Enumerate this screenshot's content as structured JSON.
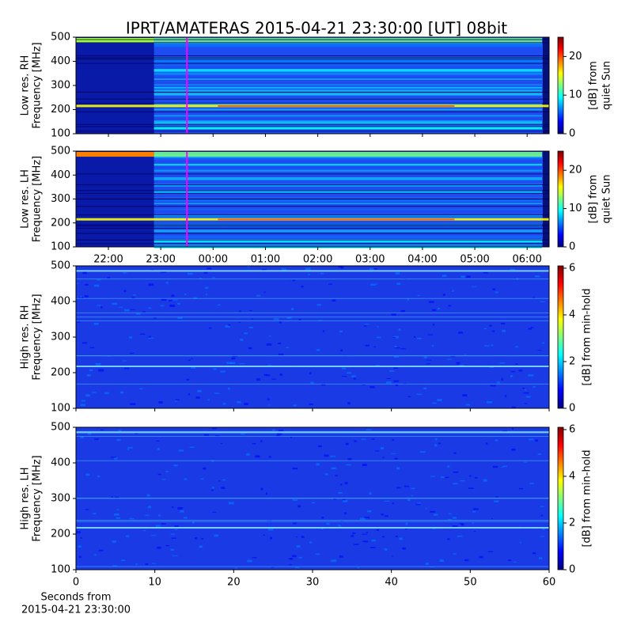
{
  "title": "IPRT/AMATERAS 2015-04-21 23:30:00 [UT]   08bit",
  "chart_data": [
    {
      "type": "heatmap",
      "colormap": "jet",
      "ylabel": [
        "Low res. RH",
        "Frequency [MHz]"
      ],
      "ylim": [
        100,
        500
      ],
      "yticks": [
        100,
        200,
        300,
        400,
        500
      ],
      "xlim": [
        21.38,
        30.42
      ],
      "marker_time": 23.5,
      "marker_color": "#ff00ff",
      "colorbar": {
        "label": [
          "[dB] from",
          "quiet Sun"
        ],
        "lim": [
          0,
          25
        ],
        "ticks": [
          0,
          10,
          20
        ]
      }
    },
    {
      "type": "heatmap",
      "colormap": "jet",
      "ylabel": [
        "Low res. LH",
        "Frequency [MHz]"
      ],
      "ylim": [
        100,
        500
      ],
      "yticks": [
        100,
        200,
        300,
        400,
        500
      ],
      "xlim": [
        21.38,
        30.42
      ],
      "xticks": [
        {
          "value": 22,
          "label": "22:00"
        },
        {
          "value": 23,
          "label": "23:00"
        },
        {
          "value": 24,
          "label": "00:00"
        },
        {
          "value": 25,
          "label": "01:00"
        },
        {
          "value": 26,
          "label": "02:00"
        },
        {
          "value": 27,
          "label": "03:00"
        },
        {
          "value": 28,
          "label": "04:00"
        },
        {
          "value": 29,
          "label": "05:00"
        },
        {
          "value": 30,
          "label": "06:00"
        }
      ],
      "marker_time": 23.5,
      "marker_color": "#ff00ff",
      "colorbar": {
        "label": [
          "[dB] from",
          "quiet Sun"
        ],
        "lim": [
          0,
          25
        ],
        "ticks": [
          0,
          10,
          20
        ]
      }
    },
    {
      "type": "heatmap",
      "colormap": "jet",
      "ylabel": [
        "High res. RH",
        "Frequency [MHz]"
      ],
      "ylim": [
        100,
        500
      ],
      "yticks": [
        100,
        200,
        300,
        400,
        500
      ],
      "xlim": [
        0,
        60
      ],
      "colorbar": {
        "label": [
          "[dB] from min-hold"
        ],
        "lim": [
          0,
          6.1
        ],
        "ticks": [
          0,
          2,
          4,
          6
        ]
      }
    },
    {
      "type": "heatmap",
      "colormap": "jet",
      "ylabel": [
        "High res. LH",
        "Frequency [MHz]"
      ],
      "ylim": [
        100,
        500
      ],
      "yticks": [
        100,
        200,
        300,
        400,
        500
      ],
      "xlim": [
        0,
        60
      ],
      "xticks": [
        0,
        10,
        20,
        30,
        40,
        50,
        60
      ],
      "xlabel": [
        "Seconds from",
        "2015-04-21 23:30:00"
      ],
      "colorbar": {
        "label": [
          "[dB] from min-hold"
        ],
        "lim": [
          0,
          6.1
        ],
        "ticks": [
          0,
          2,
          4,
          6
        ]
      }
    }
  ]
}
